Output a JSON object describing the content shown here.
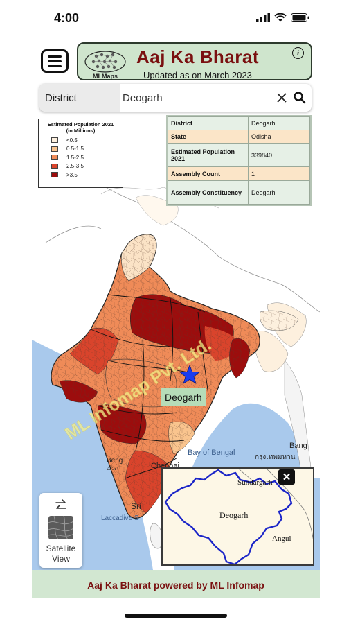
{
  "status_bar": {
    "time": "4:00"
  },
  "header": {
    "logo_text": "MLMaps",
    "title": "Aaj Ka Bharat",
    "subtitle": "Updated as on March 2023"
  },
  "search": {
    "type_label": "District",
    "value": "Deogarh"
  },
  "legend": {
    "title_line1": "Estimated Population 2021",
    "title_line2": "(in Millions)",
    "items": [
      {
        "label": "<0.5",
        "color": "#fdf0de"
      },
      {
        "label": "0.5-1.5",
        "color": "#f9c48e"
      },
      {
        "label": "1.5-2.5",
        "color": "#ef8b58"
      },
      {
        "label": "2.5-3.5",
        "color": "#d9442c"
      },
      {
        "label": ">3.5",
        "color": "#9c0d0d"
      }
    ]
  },
  "info_table": {
    "rows": [
      {
        "key": "District",
        "value": "Deogarh"
      },
      {
        "key": "State",
        "value": "Odisha"
      },
      {
        "key": "Estimated Population 2021",
        "value": "339840"
      },
      {
        "key": "Assembly Count",
        "value": "1"
      },
      {
        "key": "Assembly Constituency",
        "value": "Deogarh"
      }
    ]
  },
  "map": {
    "selected_label": "Deogarh",
    "watermark": "ML Infomap Pvt. Ltd.",
    "bay_label": "Bay of Bengal",
    "chennai_label": "Chennai",
    "sri_label": "Sri",
    "laccadive_label": "Laccadive S",
    "bang_label": "Bang",
    "thai_label": "กรุงเทพมหาน",
    "bengaluru_label": "Beng",
    "bengaluru_kn_label": "ಬೆಂಗ"
  },
  "satellite": {
    "line1": "Satellite",
    "line2": "View"
  },
  "inset": {
    "district_label": "Deogarh",
    "north_label": "Sundargarh",
    "east_label": "Angul"
  },
  "footer": {
    "text": "Aaj Ka Bharat powered by ML Infomap"
  },
  "colors": {
    "accent": "#7a1010",
    "banner_bg": "#cfe5cd",
    "water": "#a9c9ec"
  }
}
